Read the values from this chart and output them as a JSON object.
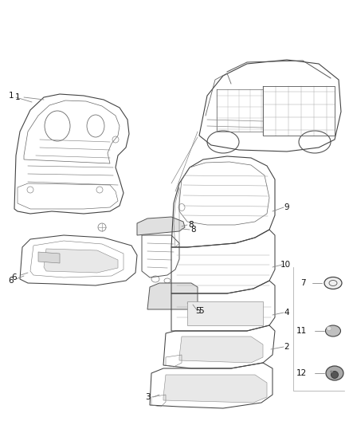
{
  "background_color": "#ffffff",
  "fig_width": 4.38,
  "fig_height": 5.33,
  "dpi": 100,
  "line_color": "#555555",
  "text_color": "#111111",
  "font_size": 7.5,
  "edge_lw": 0.7,
  "detail_lw": 0.45,
  "leader_color": "#888888",
  "leader_lw": 0.6
}
